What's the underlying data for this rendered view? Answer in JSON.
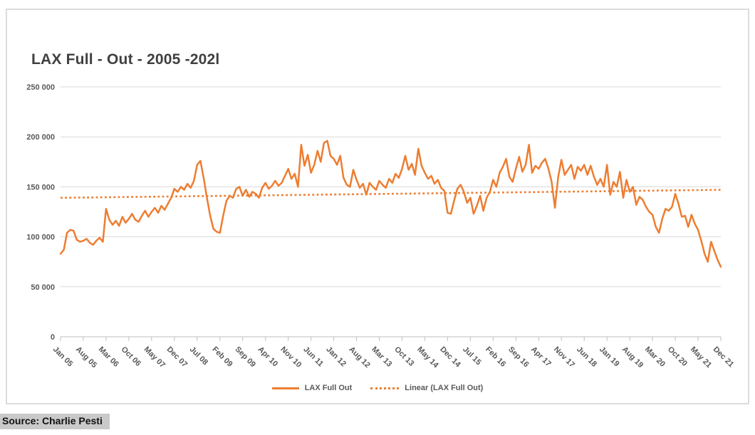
{
  "title": "LAX Full - Out - 2005 -202l",
  "source": "Source: Charlie Pesti",
  "legend": {
    "series_label": "LAX Full Out",
    "trend_label": "Linear (LAX Full Out)"
  },
  "colors": {
    "series": "#ED7D31",
    "grid": "#D9D9D9",
    "axis": "#BFBFBF",
    "axis_text": "#595959",
    "title_text": "#404040",
    "source_bg": "#C9C9C9"
  },
  "chart_data": {
    "type": "line",
    "title": "LAX Full - Out - 2005 -202l",
    "xlabel": "",
    "ylabel": "",
    "ylim": [
      0,
      250000
    ],
    "y_ticks": [
      0,
      50000,
      100000,
      150000,
      200000,
      250000
    ],
    "y_tick_labels": [
      "0",
      "50 000",
      "100 000",
      "150 000",
      "200 000",
      "250 000"
    ],
    "grid": "horizontal",
    "legend_position": "bottom",
    "x_unit": "month",
    "x_range": "Jan 2005 - Dec 2021",
    "x_tick_interval_months": 7,
    "x_tick_labels": [
      "Jan 05",
      "Aug 05",
      "Mar 06",
      "Oct 06",
      "May 07",
      "Dec 07",
      "Jul 08",
      "Feb 09",
      "Sep 09",
      "Apr 10",
      "Nov 10",
      "Jun 11",
      "Jan 12",
      "Aug 12",
      "Mar 13",
      "Oct 13",
      "May 14",
      "Dec 14",
      "Jul 15",
      "Feb 16",
      "Sep 16",
      "Apr 17",
      "Nov 17",
      "Jun 18",
      "Jan 19",
      "Aug 19",
      "Mar 20",
      "Oct 20",
      "May 21",
      "Dec 21"
    ],
    "series": [
      {
        "name": "LAX Full Out",
        "values": [
          83000,
          87000,
          104000,
          107000,
          106000,
          97000,
          95000,
          96000,
          98000,
          94000,
          92000,
          96000,
          99000,
          95000,
          128000,
          117000,
          112000,
          116000,
          111000,
          120000,
          114000,
          118000,
          123000,
          117000,
          115000,
          121000,
          126000,
          120000,
          125000,
          129000,
          124000,
          131000,
          127000,
          133000,
          139000,
          148000,
          145000,
          150000,
          147000,
          153000,
          149000,
          156000,
          172000,
          176000,
          159000,
          139000,
          121000,
          108000,
          105000,
          104000,
          121000,
          136000,
          141000,
          139000,
          148000,
          150000,
          141000,
          147000,
          140000,
          145000,
          143000,
          139000,
          149000,
          154000,
          148000,
          151000,
          156000,
          151000,
          154000,
          161000,
          168000,
          158000,
          163000,
          150000,
          192000,
          171000,
          182000,
          164000,
          172000,
          186000,
          175000,
          194000,
          196000,
          181000,
          178000,
          172000,
          181000,
          159000,
          152000,
          150000,
          167000,
          157000,
          149000,
          153000,
          142000,
          154000,
          150000,
          147000,
          156000,
          152000,
          149000,
          158000,
          154000,
          163000,
          159000,
          168000,
          181000,
          167000,
          173000,
          162000,
          188000,
          171000,
          164000,
          158000,
          161000,
          153000,
          157000,
          149000,
          146000,
          124000,
          123000,
          136000,
          148000,
          152000,
          145000,
          134000,
          139000,
          123000,
          131000,
          141000,
          126000,
          139000,
          145000,
          157000,
          150000,
          164000,
          170000,
          178000,
          160000,
          155000,
          168000,
          180000,
          165000,
          172000,
          192000,
          164000,
          171000,
          168000,
          174000,
          178000,
          168000,
          155000,
          129000,
          160000,
          177000,
          162000,
          167000,
          172000,
          158000,
          170000,
          166000,
          172000,
          162000,
          171000,
          160000,
          152000,
          158000,
          150000,
          172000,
          142000,
          155000,
          150000,
          165000,
          139000,
          157000,
          145000,
          150000,
          132000,
          140000,
          137000,
          130000,
          125000,
          122000,
          110000,
          104000,
          118000,
          128000,
          126000,
          130000,
          143000,
          133000,
          120000,
          121000,
          110000,
          122000,
          113000,
          107000,
          96000,
          83000,
          75000,
          95000,
          86000,
          77000,
          70000
        ]
      }
    ],
    "trend": {
      "name": "Linear (LAX Full Out)",
      "start_value": 139000,
      "end_value": 147000
    }
  }
}
